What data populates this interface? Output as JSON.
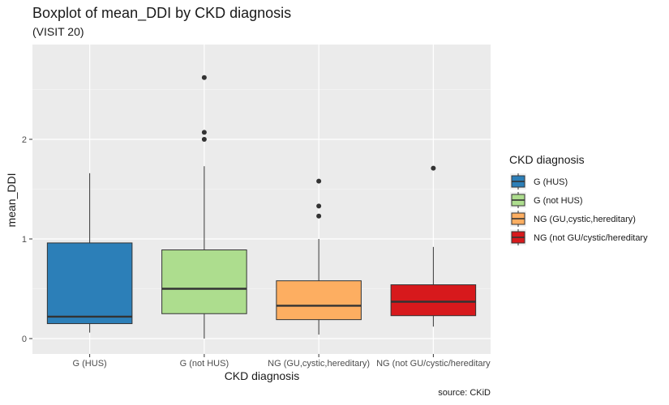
{
  "chart_data": {
    "type": "boxplot",
    "title": "Boxplot of mean_DDI by CKD diagnosis",
    "subtitle": "(VISIT 20)",
    "xlabel": "CKD diagnosis",
    "ylabel": "mean_DDI",
    "caption": "source: CKiD",
    "ylim": [
      -0.13,
      2.9
    ],
    "yticks": [
      0,
      1,
      2
    ],
    "ytick_labels": [
      "0",
      "1",
      "2"
    ],
    "grid": true,
    "legend": {
      "title": "CKD diagnosis",
      "placement": "right"
    },
    "categories": [
      "G (HUS)",
      "G (not HUS)",
      "NG (GU,cystic,hereditary)",
      "NG (not GU/cystic/hereditary"
    ],
    "series": [
      {
        "name": "G (HUS)",
        "color": "#2c7fb8",
        "whisker_low": 0.06,
        "q1": 0.15,
        "median": 0.22,
        "q3": 0.96,
        "whisker_high": 1.66,
        "outliers": []
      },
      {
        "name": "G (not HUS)",
        "color": "#addd8e",
        "whisker_low": 0.0,
        "q1": 0.25,
        "median": 0.5,
        "q3": 0.89,
        "whisker_high": 1.73,
        "outliers": [
          2.0,
          2.07,
          2.62
        ]
      },
      {
        "name": "NG (GU,cystic,hereditary)",
        "color": "#fdae61",
        "whisker_low": 0.04,
        "q1": 0.19,
        "median": 0.33,
        "q3": 0.58,
        "whisker_high": 1.0,
        "outliers": [
          1.23,
          1.33,
          1.58
        ]
      },
      {
        "name": "NG (not GU/cystic/hereditary",
        "color": "#d7191c",
        "whisker_low": 0.12,
        "q1": 0.23,
        "median": 0.37,
        "q3": 0.54,
        "whisker_high": 0.92,
        "outliers": [
          1.71
        ]
      }
    ]
  }
}
